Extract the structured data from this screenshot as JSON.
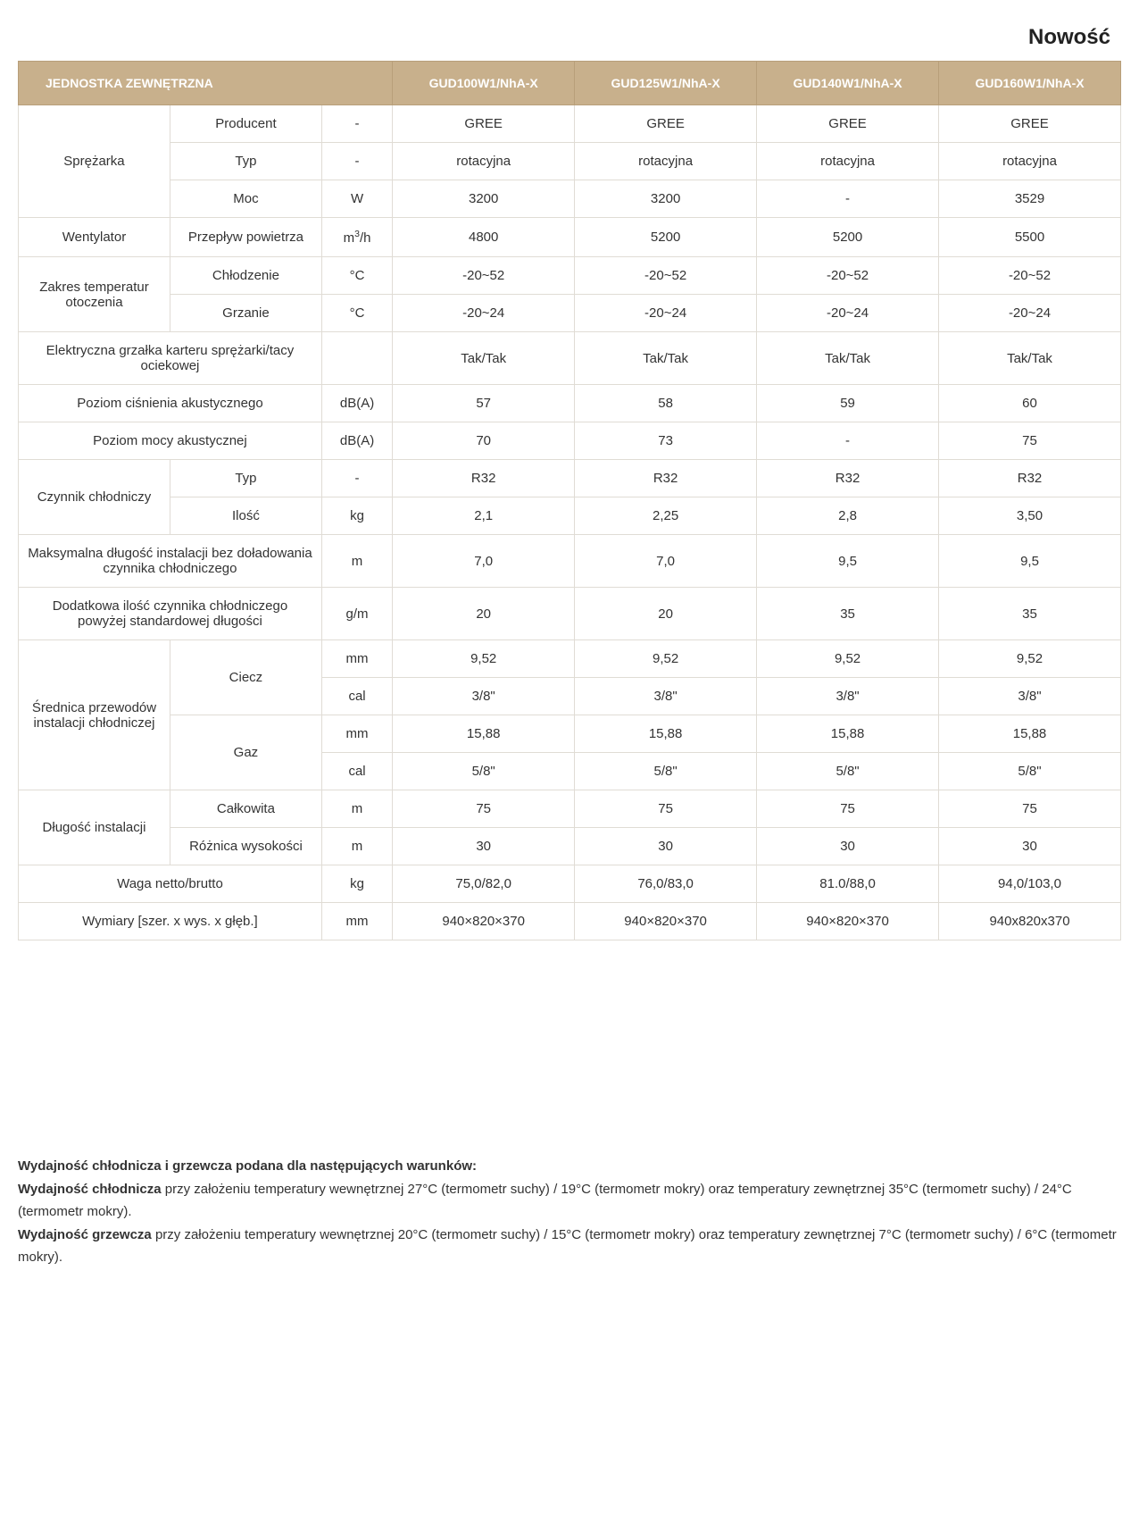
{
  "title_right": "Nowość",
  "header": {
    "label": "JEDNOSTKA ZEWNĘTRZNA",
    "models": [
      "GUD100W1/NhA-X",
      "GUD125W1/NhA-X",
      "GUD140W1/NhA-X",
      "GUD160W1/NhA-X"
    ]
  },
  "groups": [
    {
      "category": "Sprężarka",
      "rows": [
        {
          "sub": "Producent",
          "unit": "-",
          "vals": [
            "GREE",
            "GREE",
            "GREE",
            "GREE"
          ]
        },
        {
          "sub": "Typ",
          "unit": "-",
          "vals": [
            "rotacyjna",
            "rotacyjna",
            "rotacyjna",
            "rotacyjna"
          ]
        },
        {
          "sub": "Moc",
          "unit": "W",
          "vals": [
            "3200",
            "3200",
            "-",
            "3529"
          ]
        }
      ]
    },
    {
      "category": "Wentylator",
      "rows": [
        {
          "sub": "Przepływ powietrza",
          "unit_html": "m<sup>3</sup>/h",
          "vals": [
            "4800",
            "5200",
            "5200",
            "5500"
          ]
        }
      ]
    },
    {
      "category": "Zakres temperatur otoczenia",
      "rows": [
        {
          "sub": "Chłodzenie",
          "unit": "°C",
          "vals": [
            "-20~52",
            "-20~52",
            "-20~52",
            "-20~52"
          ]
        },
        {
          "sub": "Grzanie",
          "unit": "°C",
          "vals": [
            "-20~24",
            "-20~24",
            "-20~24",
            "-20~24"
          ]
        }
      ]
    },
    {
      "category_span": "Elektryczna grzałka karteru sprężarki/tacy ociekowej",
      "rows": [
        {
          "unit": "",
          "vals": [
            "Tak/Tak",
            "Tak/Tak",
            "Tak/Tak",
            "Tak/Tak"
          ]
        }
      ]
    },
    {
      "category_span": "Poziom ciśnienia akustycznego",
      "rows": [
        {
          "unit": "dB(A)",
          "vals": [
            "57",
            "58",
            "59",
            "60"
          ]
        }
      ]
    },
    {
      "category_span": "Poziom mocy akustycznej",
      "rows": [
        {
          "unit": "dB(A)",
          "vals": [
            "70",
            "73",
            "-",
            "75"
          ]
        }
      ]
    },
    {
      "category": "Czynnik chłodniczy",
      "rows": [
        {
          "sub": "Typ",
          "unit": "-",
          "vals": [
            "R32",
            "R32",
            "R32",
            "R32"
          ]
        },
        {
          "sub": "Ilość",
          "unit": "kg",
          "vals": [
            "2,1",
            "2,25",
            "2,8",
            "3,50"
          ]
        }
      ]
    },
    {
      "category_span": "Maksymalna długość instalacji bez doładowania czynnika chłodniczego",
      "rows": [
        {
          "unit": "m",
          "vals": [
            "7,0",
            "7,0",
            "9,5",
            "9,5"
          ]
        }
      ]
    },
    {
      "category_span": "Dodatkowa ilość czynnika chłodniczego powyżej standardowej długości",
      "rows": [
        {
          "unit": "g/m",
          "vals": [
            "20",
            "20",
            "35",
            "35"
          ]
        }
      ]
    },
    {
      "category": "Średnica przewodów instalacji chłodniczej",
      "nested": [
        {
          "sub_group": "Ciecz",
          "rows": [
            {
              "unit": "mm",
              "vals": [
                "9,52",
                "9,52",
                "9,52",
                "9,52"
              ]
            },
            {
              "unit": "cal",
              "vals": [
                "3/8\"",
                "3/8\"",
                "3/8\"",
                "3/8\""
              ]
            }
          ]
        },
        {
          "sub_group": "Gaz",
          "rows": [
            {
              "unit": "mm",
              "vals": [
                "15,88",
                "15,88",
                "15,88",
                "15,88"
              ]
            },
            {
              "unit": "cal",
              "vals": [
                "5/8\"",
                "5/8\"",
                "5/8\"",
                "5/8\""
              ]
            }
          ]
        }
      ]
    },
    {
      "category": "Długość instalacji",
      "rows": [
        {
          "sub": "Całkowita",
          "unit": "m",
          "vals": [
            "75",
            "75",
            "75",
            "75"
          ]
        },
        {
          "sub": "Różnica wysokości",
          "unit": "m",
          "vals": [
            "30",
            "30",
            "30",
            "30"
          ]
        }
      ]
    },
    {
      "category_span": "Waga netto/brutto",
      "rows": [
        {
          "unit": "kg",
          "vals": [
            "75,0/82,0",
            "76,0/83,0",
            "81.0/88,0",
            "94,0/103,0"
          ]
        }
      ]
    },
    {
      "category_span": "Wymiary [szer. x wys. x głęb.]",
      "rows": [
        {
          "unit": "mm",
          "vals": [
            "940×820×370",
            "940×820×370",
            "940×820×370",
            "940x820x370"
          ]
        }
      ]
    }
  ],
  "footnotes": {
    "heading": "Wydajność chłodnicza i grzewcza podana dla następujących warunków:",
    "lines_html": [
      "<span class='bold'>Wydajność chłodnicza</span> przy założeniu temperatury wewnętrznej 27°C (termometr suchy) / 19°C (termometr mokry) oraz temperatury zewnętrznej 35°C (termometr suchy) / 24°C (termometr mokry).",
      "<span class='bold'>Wydajność grzewcza</span> przy założeniu temperatury wewnętrznej 20°C (termometr suchy) / 15°C (termometr mokry) oraz temperatury zewnętrznej 7°C (termometr suchy) / 6°C (termometr mokry)."
    ]
  },
  "colors": {
    "header_bg": "#c8b08c",
    "header_text": "#ffffff",
    "border": "#e0dcd5",
    "text": "#333333",
    "bg": "#ffffff"
  }
}
